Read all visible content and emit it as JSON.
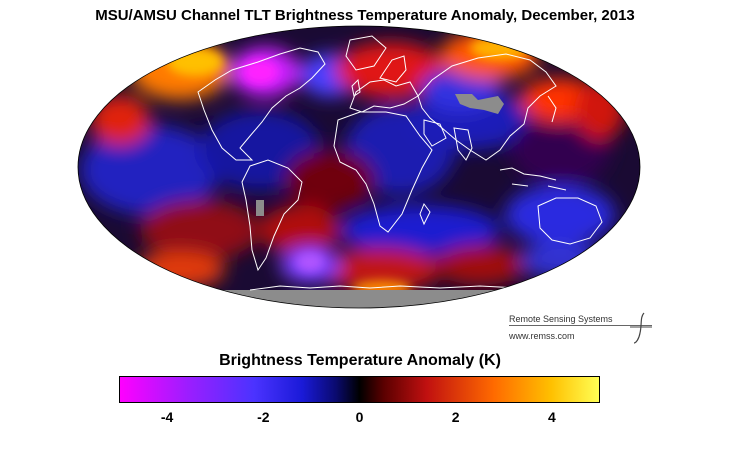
{
  "title": "MSU/AMSU Channel TLT Brightness Temperature Anomaly, December, 2013",
  "credit": {
    "line1": "Remote Sensing Systems",
    "line2": "www.remss.com"
  },
  "colorbar": {
    "label": "Brightness Temperature Anomaly (K)",
    "range": [
      -5,
      5
    ],
    "ticks": [
      "-4",
      "-2",
      "0",
      "2",
      "4"
    ],
    "colors": [
      "#ff00ff",
      "#4b33ff",
      "#000000",
      "#c01010",
      "#ffff55"
    ]
  },
  "map": {
    "projection": "Mollweide",
    "no_data_color": "#8c8c8c",
    "coastline_color": "#ffffff"
  }
}
